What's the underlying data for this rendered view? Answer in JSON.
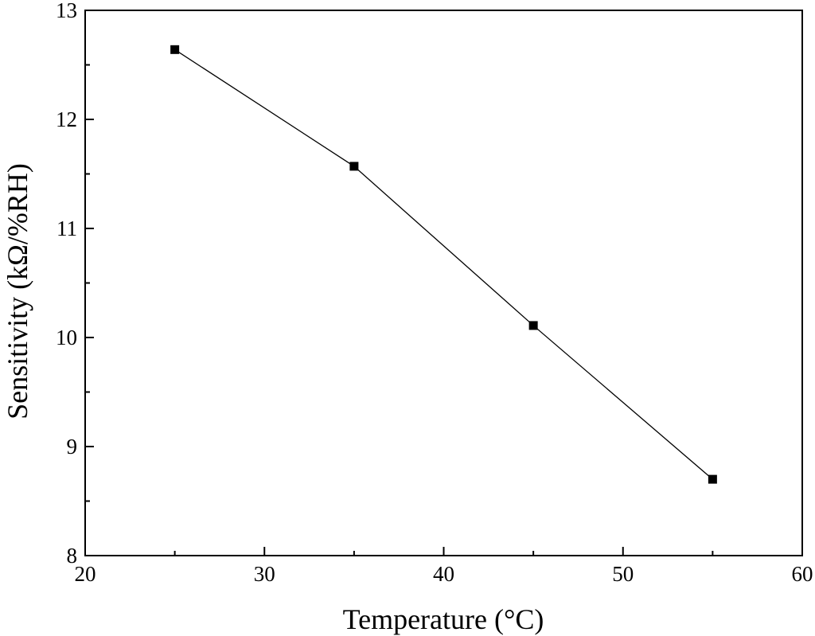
{
  "chart_data": {
    "type": "line",
    "title": "",
    "xlabel": "Temperature (°C)",
    "ylabel": "Sensitivity (kΩ/%RH)",
    "xlim": [
      20,
      60
    ],
    "ylim": [
      8,
      13
    ],
    "xticks": [
      20,
      30,
      40,
      50,
      60
    ],
    "yticks": [
      8,
      9,
      10,
      11,
      12,
      13
    ],
    "grid": false,
    "legend": "none",
    "series": [
      {
        "x": [
          25,
          35,
          45,
          55
        ],
        "y": [
          12.64,
          11.57,
          10.11,
          8.7
        ],
        "marker": "square",
        "color": "#000000"
      }
    ]
  }
}
